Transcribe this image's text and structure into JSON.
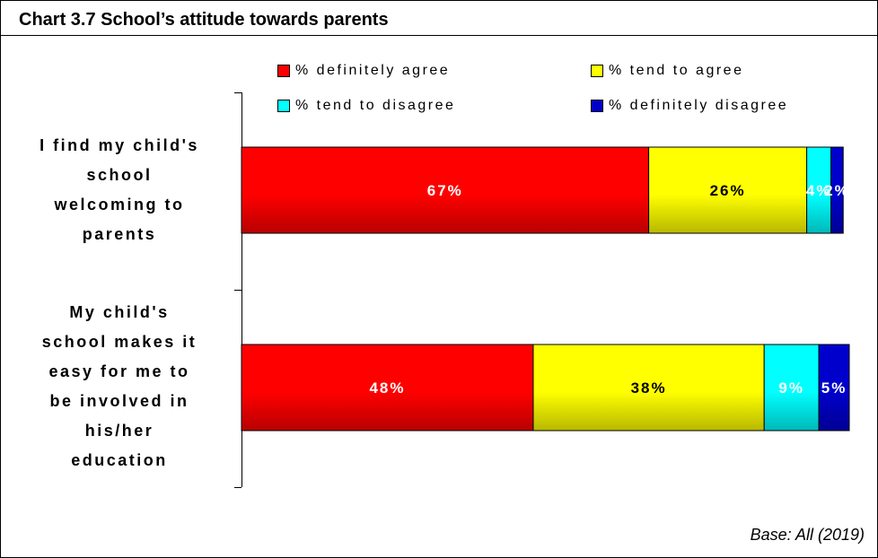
{
  "title": "Chart 3.7 School’s attitude towards parents",
  "base_note": "Base: All (2019)",
  "colors": {
    "definitely_agree": "#ff0000",
    "tend_to_agree": "#ffff00",
    "tend_to_disagree": "#00ffff",
    "definitely_disagree": "#0000cc"
  },
  "legend": [
    {
      "label": "% definitely agree",
      "color": "#ff0000"
    },
    {
      "label": "% tend to agree",
      "color": "#ffff00"
    },
    {
      "label": "% tend to disagree",
      "color": "#00ffff"
    },
    {
      "label": "% definitely disagree",
      "color": "#0000cc"
    }
  ],
  "chart_data": {
    "type": "bar",
    "orientation": "horizontal",
    "stacked": true,
    "percent": true,
    "title": "Chart 3.7 School’s attitude towards parents",
    "categories": [
      "I find my child's school welcoming to parents",
      "My child's school makes it easy for me to be involved in his/her education"
    ],
    "category_lines": [
      [
        "I find my child's",
        "school",
        "welcoming to",
        "parents"
      ],
      [
        "My child's",
        "school makes it",
        "easy for me to",
        "be involved in",
        "his/her",
        "education"
      ]
    ],
    "series": [
      {
        "name": "% definitely agree",
        "color": "#ff0000",
        "values": [
          67,
          48
        ],
        "labels": [
          "67%",
          "48%"
        ]
      },
      {
        "name": "% tend to agree",
        "color": "#ffff00",
        "values": [
          26,
          38
        ],
        "labels": [
          "26%",
          "38%"
        ]
      },
      {
        "name": "% tend to disagree",
        "color": "#00ffff",
        "values": [
          4,
          9
        ],
        "labels": [
          "4%",
          "9%"
        ]
      },
      {
        "name": "% definitely disagree",
        "color": "#0000cc",
        "values": [
          2,
          5
        ],
        "labels": [
          "2%",
          "5%"
        ]
      }
    ],
    "xlim": [
      0,
      100
    ],
    "legend_position": "top",
    "grid": false
  }
}
